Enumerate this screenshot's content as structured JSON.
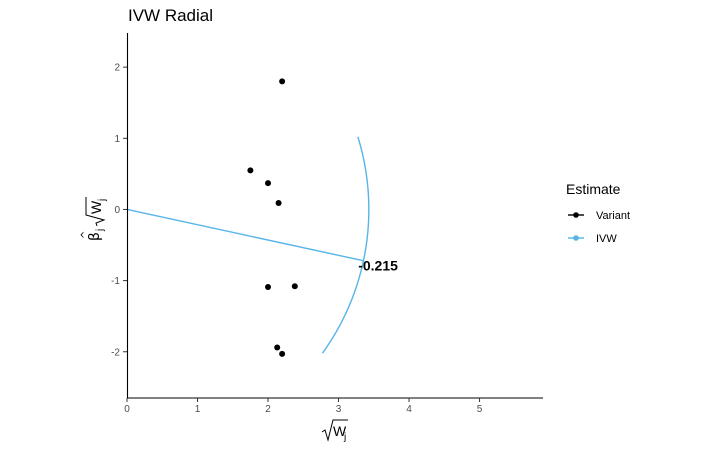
{
  "chart_data": {
    "type": "scatter",
    "title": "IVW Radial",
    "xlabel": "√W_j",
    "ylabel": "β̂_j √W_j",
    "xlim": [
      0,
      5.9
    ],
    "ylim": [
      -2.65,
      2.48
    ],
    "x_ticks": [
      "0",
      "1",
      "2",
      "3",
      "4",
      "5"
    ],
    "y_ticks": [
      "-2",
      "-1",
      "0",
      "1",
      "2"
    ],
    "grid": false,
    "legend": {
      "title": "Estimate",
      "position": "right",
      "entries": [
        {
          "label": "Variant",
          "color": "#000000"
        },
        {
          "label": "IVW",
          "color": "#56B4E9"
        }
      ]
    },
    "series": [
      {
        "name": "Variant",
        "points": [
          {
            "x": 2.2,
            "y": 1.8
          },
          {
            "x": 1.75,
            "y": 0.55
          },
          {
            "x": 2.0,
            "y": 0.37
          },
          {
            "x": 2.15,
            "y": 0.09
          },
          {
            "x": 2.0,
            "y": -1.09
          },
          {
            "x": 2.38,
            "y": -1.08
          },
          {
            "x": 2.13,
            "y": -1.94
          },
          {
            "x": 2.2,
            "y": -2.03
          }
        ]
      },
      {
        "name": "IVW",
        "line": {
          "x": [
            0,
            3.35
          ],
          "y": [
            0,
            -0.72
          ]
        },
        "arc_center": [
          0,
          0
        ],
        "arc_radius": 3.43,
        "arc_y_range": [
          1.02,
          -2.02
        ]
      }
    ],
    "annotations": [
      {
        "text": "-0.215",
        "x": 3.35,
        "y": -0.72
      }
    ],
    "colors": {
      "variant": "#000000",
      "ivw": "#56B4E9"
    }
  }
}
